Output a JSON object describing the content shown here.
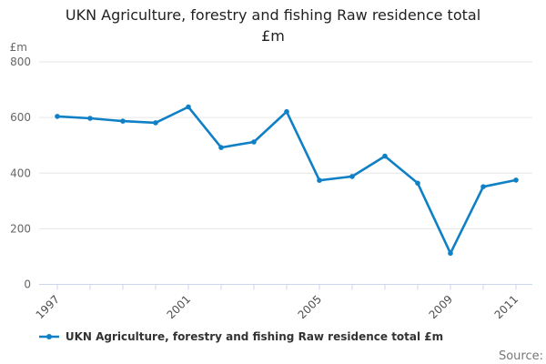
{
  "title": {
    "line1": "UKN Agriculture, forestry and fishing Raw residence total",
    "line2": "£m"
  },
  "legend": {
    "label": "UKN Agriculture, forestry and fishing Raw residence total £m"
  },
  "footer": {
    "source_label": "Source:"
  },
  "colors": {
    "series": "#0f80c5",
    "grid": "#e6e6e6",
    "axis": "#ccd6eb",
    "y_label_text": "#666666",
    "x_label_text": "#4d4d4d",
    "title_text": "#222222",
    "legend_text": "#333333",
    "source_text": "#777777"
  },
  "chart_data": {
    "type": "line",
    "title": "UKN Agriculture, forestry and fishing Raw residence total £m",
    "xlabel": "",
    "ylabel": "£m",
    "x": [
      1997,
      1998,
      1999,
      2000,
      2001,
      2002,
      2003,
      2004,
      2005,
      2006,
      2007,
      2008,
      2009,
      2010,
      2011
    ],
    "series": [
      {
        "name": "UKN Agriculture, forestry and fishing Raw residence total £m",
        "values": [
          604,
          597,
          587,
          581,
          638,
          492,
          512,
          621,
          374,
          388,
          461,
          364,
          112,
          351,
          375
        ]
      }
    ],
    "ylim": [
      0,
      800
    ],
    "y_ticks": [
      0,
      200,
      400,
      600,
      800
    ],
    "x_labeled_ticks": [
      1997,
      2001,
      2005,
      2009,
      2011
    ],
    "grid": "horizontal",
    "legend_position": "bottom",
    "marker": "circle"
  }
}
